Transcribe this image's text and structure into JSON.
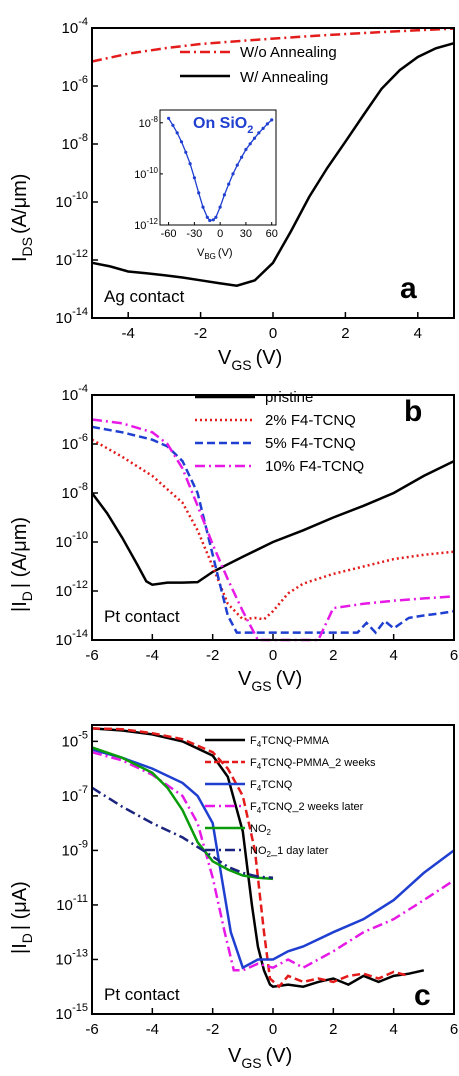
{
  "chart_data": [
    {
      "type": "line",
      "panel_label": "a",
      "annotation": "Ag contact",
      "xlabel": "V_GS (V)",
      "ylabel": "I_DS (A/μm)",
      "xlim": [
        -5,
        5
      ],
      "ylim_log10": [
        -14,
        -4
      ],
      "y_scale": "log",
      "x_ticks": [
        -4,
        -2,
        0,
        2,
        4
      ],
      "y_ticks_exp": [
        -14,
        -12,
        -10,
        -8,
        -6,
        -4
      ],
      "legend": "top-right",
      "series": [
        {
          "name": "W/o  Annealing",
          "color": "#e31b1b",
          "dash": "dashdot",
          "x": [
            -5,
            -4,
            -3,
            -2,
            -1,
            0,
            1,
            2,
            3,
            4,
            5
          ],
          "y": [
            7e-06,
            1.3e-05,
            2e-05,
            2.8e-05,
            3.5e-05,
            4.3e-05,
            5.2e-05,
            6.2e-05,
            7.2e-05,
            8.3e-05,
            9.5e-05
          ]
        },
        {
          "name": "W/ Annealing",
          "color": "#000000",
          "dash": "solid",
          "x": [
            -5,
            -4.5,
            -4,
            -3.5,
            -3,
            -2.5,
            -2,
            -1.5,
            -1,
            -0.5,
            0,
            0.5,
            1,
            1.5,
            2,
            2.5,
            3,
            3.5,
            4,
            4.5,
            5
          ],
          "y": [
            8e-13,
            6e-13,
            4e-13,
            3.5e-13,
            3e-13,
            2.5e-13,
            2e-13,
            1.6e-13,
            1.3e-13,
            2e-13,
            8e-13,
            1e-11,
            1.5e-10,
            1.5e-09,
            1.2e-08,
            1e-07,
            8e-07,
            3.5e-06,
            1e-05,
            2e-05,
            3e-05
          ]
        }
      ],
      "inset": {
        "title": "On SiO2",
        "xlabel": "V_BG (V)",
        "xlim": [
          -70,
          65
        ],
        "ylim_log10": [
          -12,
          -7.5
        ],
        "x_ticks": [
          -60,
          -30,
          0,
          30,
          60
        ],
        "y_ticks_exp": [
          -12,
          -10,
          -8
        ],
        "series": [
          {
            "name": "",
            "color": "#1f3fd1",
            "x": [
              -60,
              -55,
              -50,
              -45,
              -40,
              -35,
              -30,
              -25,
              -20,
              -15,
              -12,
              -8,
              -5,
              0,
              5,
              10,
              15,
              20,
              25,
              30,
              35,
              40,
              45,
              50,
              55,
              60
            ],
            "y": [
              1.5e-08,
              8e-09,
              4e-09,
              1.8e-09,
              7e-10,
              2.5e-10,
              7e-11,
              1.8e-11,
              5e-12,
              2e-12,
              1.5e-12,
              1.6e-12,
              2e-12,
              5e-12,
              1.5e-11,
              4e-11,
              1e-10,
              2.2e-10,
              4.5e-10,
              9e-10,
              1.5e-09,
              2.5e-09,
              4e-09,
              6e-09,
              9e-09,
              1.3e-08
            ]
          }
        ]
      }
    },
    {
      "type": "line",
      "panel_label": "b",
      "annotation": "Pt contact",
      "xlabel": "V_GS (V)",
      "ylabel": "|I_D | (A/μm)",
      "xlim": [
        -6,
        6
      ],
      "ylim_log10": [
        -14,
        -4
      ],
      "y_scale": "log",
      "x_ticks": [
        -6,
        -4,
        -2,
        0,
        2,
        4,
        6
      ],
      "y_ticks_exp": [
        -14,
        -12,
        -10,
        -8,
        -6,
        -4
      ],
      "legend": "top-right",
      "series": [
        {
          "name": "pristine",
          "color": "#000000",
          "dash": "solid",
          "x": [
            -6,
            -5.5,
            -5,
            -4.5,
            -4.2,
            -4,
            -3.5,
            -3,
            -2.5,
            -2,
            -1,
            0,
            1,
            2,
            3,
            4,
            5,
            6
          ],
          "y": [
            1e-08,
            1.5e-09,
            1.5e-10,
            1.2e-11,
            2.5e-12,
            1.8e-12,
            2.2e-12,
            2.2e-12,
            2.3e-12,
            6e-12,
            2.5e-11,
            1e-10,
            3e-10,
            1e-09,
            3e-09,
            1e-08,
            5e-08,
            2e-07
          ]
        },
        {
          "name": "2% F4-TCNQ",
          "color": "#e31b1b",
          "dash": "dotted",
          "x": [
            -6,
            -5,
            -4,
            -3,
            -2.5,
            -2,
            -1.5,
            -1,
            -0.6,
            -0.3,
            0,
            0.5,
            1,
            2,
            3,
            4,
            5,
            6
          ],
          "y": [
            1.5e-06,
            3e-07,
            5e-08,
            4e-09,
            3e-10,
            1e-11,
            3e-13,
            7e-14,
            8e-14,
            7e-14,
            1.5e-13,
            8e-13,
            2e-12,
            5e-12,
            1e-11,
            2e-11,
            3e-11,
            4e-11
          ]
        },
        {
          "name": "5% F4-TCNQ",
          "color": "#1f3fd1",
          "dash": "dashed",
          "x": [
            -6,
            -5,
            -4,
            -3.5,
            -3,
            -2.5,
            -2,
            -1.8,
            -1.5,
            -1.2,
            2.8,
            3.1,
            3.4,
            3.7,
            4,
            4.5,
            5,
            5.5,
            6
          ],
          "y": [
            5e-06,
            3e-06,
            1.5e-06,
            8e-07,
            2e-07,
            1e-08,
            3e-11,
            3e-12,
            1e-13,
            2e-14,
            2e-14,
            5e-14,
            2e-14,
            6e-14,
            3e-14,
            8e-14,
            1e-13,
            1.2e-13,
            1.5e-13
          ]
        },
        {
          "name": "10% F4-TCNQ",
          "color": "#e619e6",
          "dash": "dashdot",
          "x": [
            -6,
            -5,
            -4,
            -3.5,
            -3,
            -2.5,
            -2,
            -1.5,
            -1,
            -0.5,
            1.5,
            2,
            3,
            4,
            5,
            6
          ],
          "y": [
            1e-05,
            7e-06,
            3e-06,
            1e-06,
            1e-07,
            3e-09,
            8e-11,
            3e-12,
            1.5e-13,
            1e-14,
            1e-14,
            2e-13,
            3e-13,
            4e-13,
            5e-13,
            6e-13
          ]
        }
      ]
    },
    {
      "type": "line",
      "panel_label": "c",
      "annotation": "Pt contact",
      "xlabel": "V_GS (V)",
      "ylabel": "|I_D | (μA)",
      "xlim": [
        -6,
        6
      ],
      "ylim_log10": [
        -15,
        -4.4
      ],
      "y_scale": "log",
      "x_ticks": [
        -6,
        -4,
        -2,
        0,
        2,
        4,
        6
      ],
      "y_ticks_exp": [
        -15,
        -13,
        -11,
        -9,
        -7,
        -5
      ],
      "legend": "top-right",
      "series": [
        {
          "name": "F4TCNQ-PMMA",
          "color": "#000000",
          "dash": "solid",
          "x": [
            -6,
            -5,
            -4,
            -3,
            -2,
            -1.5,
            -1,
            -0.7,
            -0.5,
            -0.3,
            -0.1,
            0,
            0.5,
            1,
            1.5,
            2,
            2.5,
            3,
            3.5,
            4,
            4.5,
            5
          ],
          "y": [
            3e-05,
            2.5e-05,
            1.8e-05,
            1e-05,
            3e-06,
            5e-07,
            5e-09,
            1e-11,
            3e-13,
            4e-14,
            1.2e-14,
            1e-14,
            1.2e-14,
            1e-14,
            1.5e-14,
            2e-14,
            1.2e-14,
            2.5e-14,
            1.5e-14,
            2.5e-14,
            3e-14,
            4e-14
          ]
        },
        {
          "name": "F4TCNQ-PMMA_2 weeks",
          "color": "#e31b1b",
          "dash": "dashed",
          "x": [
            -6,
            -5,
            -4,
            -3,
            -2,
            -1.5,
            -1,
            -0.6,
            -0.3,
            -0.1,
            0.2,
            0.5,
            1,
            1.5,
            2,
            2.5,
            3,
            3.5,
            4,
            4.5
          ],
          "y": [
            3e-05,
            2.8e-05,
            2e-05,
            1.2e-05,
            4e-06,
            1e-06,
            1e-07,
            1e-09,
            1e-12,
            2e-14,
            1e-14,
            2.5e-14,
            1.5e-14,
            2e-14,
            1.5e-14,
            2.5e-14,
            3e-14,
            2e-14,
            3.5e-14,
            2.5e-14
          ]
        },
        {
          "name": "F4TCNQ",
          "color": "#1f3fd1",
          "dash": "solid",
          "x": [
            -6,
            -5,
            -4,
            -3,
            -2.5,
            -2,
            -1.7,
            -1.4,
            -1,
            -0.5,
            0,
            0.5,
            1,
            2,
            3,
            4,
            5,
            6
          ],
          "y": [
            5e-06,
            2.5e-06,
            1e-06,
            3e-07,
            1e-07,
            1e-08,
            1e-10,
            1e-12,
            5e-14,
            1e-13,
            1e-13,
            2e-13,
            3e-13,
            1e-12,
            3e-12,
            1.5e-11,
            1.5e-10,
            1e-09
          ]
        },
        {
          "name": "F4TCNQ_2 weeks later",
          "color": "#e619e6",
          "dash": "dashdot",
          "x": [
            -6,
            -5,
            -4,
            -3,
            -2.5,
            -2,
            -1.6,
            -1.3,
            -1,
            -0.5,
            0,
            0.5,
            1,
            2,
            3,
            4,
            5,
            6
          ],
          "y": [
            4e-06,
            2e-06,
            6e-07,
            1e-07,
            1e-08,
            1e-10,
            1e-12,
            4e-14,
            4e-14,
            7e-14,
            5e-14,
            1e-13,
            5e-14,
            2e-13,
            1e-12,
            3e-12,
            1.5e-11,
            8e-11
          ]
        },
        {
          "name": "NO2",
          "color": "#0a9c0a",
          "dash": "solid",
          "x": [
            -6,
            -5,
            -4,
            -3.5,
            -3,
            -2.5,
            -2,
            -1.5,
            -1,
            -0.5,
            0
          ],
          "y": [
            6e-06,
            2.5e-06,
            7e-07,
            2e-07,
            3e-08,
            2e-09,
            4e-10,
            2e-10,
            1.2e-10,
            1e-10,
            9e-11
          ]
        },
        {
          "name": "NO2_1 day later",
          "color": "#1a237e",
          "dash": "dashdot",
          "x": [
            -6,
            -5,
            -4,
            -3,
            -2,
            -1.5,
            -1,
            -0.5,
            0
          ],
          "y": [
            2e-07,
            4e-08,
            1e-08,
            3e-09,
            6e-10,
            2.5e-10,
            1.5e-10,
            1.1e-10,
            1e-10
          ]
        }
      ]
    }
  ],
  "labels": {
    "panel_a": {
      "letter": "a",
      "contact": "Ag contact",
      "ylabel_main": "I",
      "ylabel_sub": "DS",
      "ylabel_unit": "(A/μm)",
      "xlabel_main": "V",
      "xlabel_sub": "GS",
      "xlabel_unit": "(V)",
      "legend1": "W/o  Annealing",
      "legend2": "W/ Annealing",
      "inset_title_main": "On SiO",
      "inset_title_sub": "2",
      "inset_xlabel_main": "V",
      "inset_xlabel_sub": "BG",
      "inset_xlabel_unit": "(V)"
    },
    "panel_b": {
      "letter": "b",
      "contact": "Pt contact",
      "ylabel": "|I",
      "ylabel_sub": "D",
      "ylabel_unit": "| (A/μm)",
      "xlabel_main": "V",
      "xlabel_sub": "GS",
      "xlabel_unit": "(V)",
      "legend": [
        "pristine",
        "2% F4-TCNQ",
        "5% F4-TCNQ",
        "10% F4-TCNQ"
      ]
    },
    "panel_c": {
      "letter": "c",
      "contact": "Pt contact",
      "ylabel": "|I",
      "ylabel_sub": "D",
      "ylabel_unit": "| (μA)",
      "xlabel_main": "V",
      "xlabel_sub": "GS",
      "xlabel_unit": "(V)",
      "legend": [
        {
          "pre": "F",
          "sub": "4",
          "post": "TCNQ-PMMA"
        },
        {
          "pre": "F",
          "sub": "4",
          "post": "TCNQ-PMMA_2 weeks"
        },
        {
          "pre": "F",
          "sub": "4",
          "post": "TCNQ"
        },
        {
          "pre": "F",
          "sub": "4",
          "post": "TCNQ_2 weeks later"
        },
        {
          "pre": "NO",
          "sub": "2",
          "post": ""
        },
        {
          "pre": "NO",
          "sub": "2",
          "post": "_1 day later"
        }
      ]
    }
  }
}
